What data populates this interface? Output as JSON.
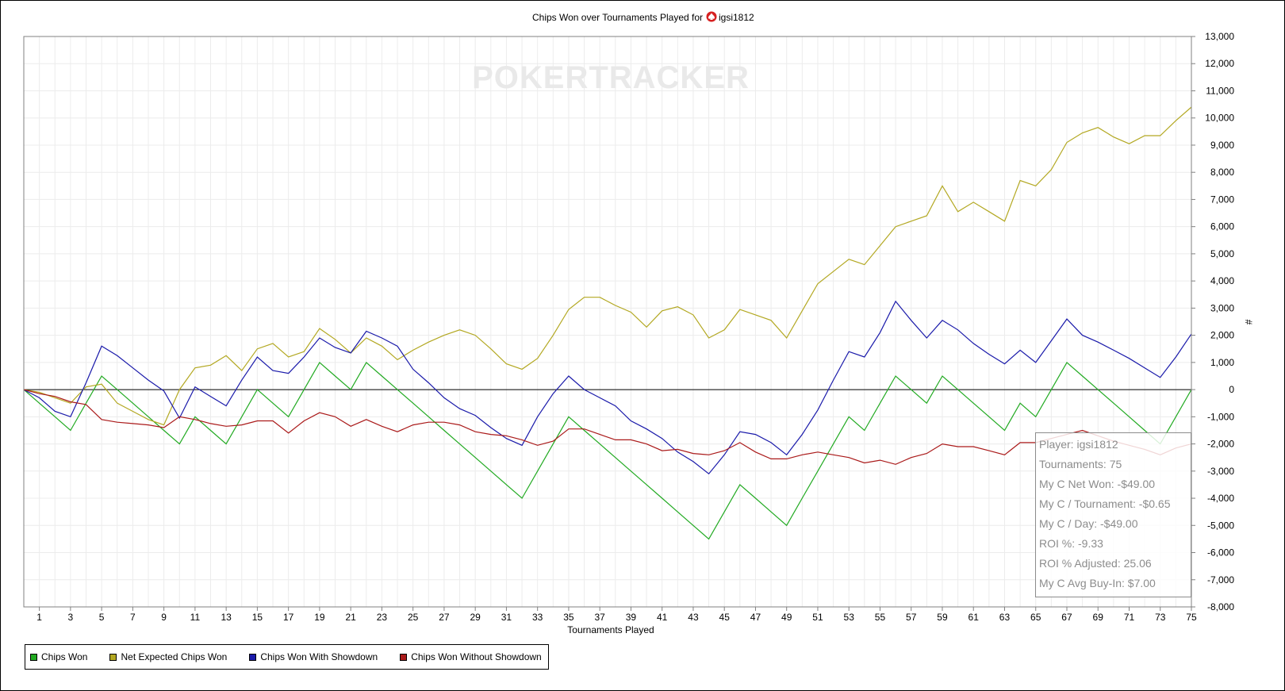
{
  "chart_data": {
    "type": "line",
    "title": "Chips Won over Tournaments Played for",
    "title_player": "igsi1812",
    "watermark": "POKERTRACKER",
    "xlabel": "Tournaments Played",
    "ylabel": "#",
    "xlim": [
      0,
      75
    ],
    "ylim": [
      -8000,
      13000
    ],
    "x_ticks": [
      1,
      3,
      5,
      7,
      9,
      11,
      13,
      15,
      17,
      19,
      21,
      23,
      25,
      27,
      29,
      31,
      33,
      35,
      37,
      39,
      41,
      43,
      45,
      47,
      49,
      51,
      53,
      55,
      57,
      59,
      61,
      63,
      65,
      67,
      69,
      71,
      73,
      75
    ],
    "y_ticks": [
      -8000,
      -7000,
      -6000,
      -5000,
      -4000,
      -3000,
      -2000,
      -1000,
      0,
      1000,
      2000,
      3000,
      4000,
      5000,
      6000,
      7000,
      8000,
      9000,
      10000,
      11000,
      12000,
      13000
    ],
    "y_tick_labels": [
      "-8,000",
      "-7,000",
      "-6,000",
      "-5,000",
      "-4,000",
      "-3,000",
      "-2,000",
      "-1,000",
      "0",
      "1,000",
      "2,000",
      "3,000",
      "4,000",
      "5,000",
      "6,000",
      "7,000",
      "8,000",
      "9,000",
      "10,000",
      "11,000",
      "12,000",
      "13,000"
    ],
    "grid": true,
    "legend_position": "bottom-left",
    "series": [
      {
        "name": "Chips Won",
        "color": "#22aa22",
        "values": [
          0,
          -500,
          -1000,
          -1500,
          -500,
          500,
          0,
          -500,
          -1000,
          -1500,
          -2000,
          -1000,
          -1500,
          -2000,
          -1000,
          0,
          -500,
          -1000,
          0,
          1000,
          500,
          0,
          1000,
          500,
          0,
          -500,
          -1000,
          -1500,
          -2000,
          -2500,
          -3000,
          -3500,
          -4000,
          -3000,
          -2000,
          -1000,
          -1500,
          -2000,
          -2500,
          -3000,
          -3500,
          -4000,
          -4500,
          -5000,
          -5500,
          -4500,
          -3500,
          -4000,
          -4500,
          -5000,
          -4000,
          -3000,
          -2000,
          -1000,
          -1500,
          -500,
          500,
          0,
          -500,
          500,
          0,
          -500,
          -1000,
          -1500,
          -500,
          -1000,
          0,
          1000,
          500,
          0,
          -500,
          -1000,
          -1500,
          -2000,
          -1000,
          0
        ]
      },
      {
        "name": "Net Expected Chips Won",
        "color": "#b3a822",
        "values": [
          0,
          -100,
          -300,
          -500,
          100,
          200,
          -500,
          -800,
          -1100,
          -1300,
          0,
          800,
          900,
          1250,
          700,
          1500,
          1700,
          1200,
          1400,
          2250,
          1850,
          1350,
          1900,
          1600,
          1100,
          1450,
          1750,
          2000,
          2200,
          2000,
          1500,
          950,
          750,
          1150,
          2000,
          2950,
          3400,
          3400,
          3100,
          2850,
          2300,
          2900,
          3050,
          2750,
          1900,
          2200,
          2950,
          2750,
          2550,
          1900,
          2900,
          3900,
          4350,
          4800,
          4600,
          5300,
          6000,
          6200,
          6400,
          7500,
          6550,
          6900,
          6550,
          6200,
          7700,
          7500,
          8100,
          9100,
          9450,
          9650,
          9300,
          9050,
          9350,
          9350,
          9900,
          10400
        ]
      },
      {
        "name": "Chips Won With Showdown",
        "color": "#1a1aaa",
        "values": [
          0,
          -300,
          -800,
          -1000,
          250,
          1600,
          1250,
          800,
          350,
          -50,
          -1050,
          100,
          -250,
          -600,
          350,
          1200,
          700,
          600,
          1200,
          1900,
          1550,
          1350,
          2150,
          1900,
          1600,
          750,
          250,
          -300,
          -700,
          -950,
          -1400,
          -1800,
          -2050,
          -1000,
          -150,
          500,
          0,
          -300,
          -600,
          -1150,
          -1450,
          -1800,
          -2300,
          -2650,
          -3100,
          -2400,
          -1550,
          -1650,
          -1950,
          -2400,
          -1650,
          -750,
          350,
          1400,
          1200,
          2100,
          3250,
          2550,
          1900,
          2550,
          2200,
          1700,
          1300,
          950,
          1450,
          1000,
          1800,
          2600,
          2000,
          1750,
          1450,
          1150,
          800,
          450,
          1200,
          2050
        ]
      },
      {
        "name": "Chips Won Without Showdown",
        "color": "#aa1a1a",
        "values": [
          0,
          -150,
          -250,
          -450,
          -550,
          -1100,
          -1200,
          -1250,
          -1300,
          -1400,
          -1000,
          -1100,
          -1250,
          -1350,
          -1300,
          -1150,
          -1150,
          -1600,
          -1150,
          -850,
          -1000,
          -1350,
          -1100,
          -1350,
          -1550,
          -1300,
          -1200,
          -1200,
          -1300,
          -1550,
          -1650,
          -1700,
          -1850,
          -2050,
          -1900,
          -1450,
          -1450,
          -1650,
          -1850,
          -1850,
          -2000,
          -2250,
          -2200,
          -2350,
          -2400,
          -2250,
          -1950,
          -2300,
          -2550,
          -2550,
          -2400,
          -2300,
          -2400,
          -2500,
          -2700,
          -2600,
          -2750,
          -2500,
          -2350,
          -2000,
          -2100,
          -2100,
          -2250,
          -2400,
          -1950,
          -1950,
          -1800,
          -1650,
          -1500,
          -1700,
          -1900,
          -2050,
          -2200,
          -2400,
          -2150,
          -2000
        ]
      }
    ]
  },
  "tooltip": {
    "lines": [
      "Player: igsi1812",
      "Tournaments: 75",
      "My C Net Won: -$49.00",
      "My C / Tournament: -$0.65",
      "My C / Day: -$49.00",
      "ROI %: -9.33",
      "ROI % Adjusted: 25.06",
      "My C Avg Buy-In: $7.00"
    ]
  }
}
